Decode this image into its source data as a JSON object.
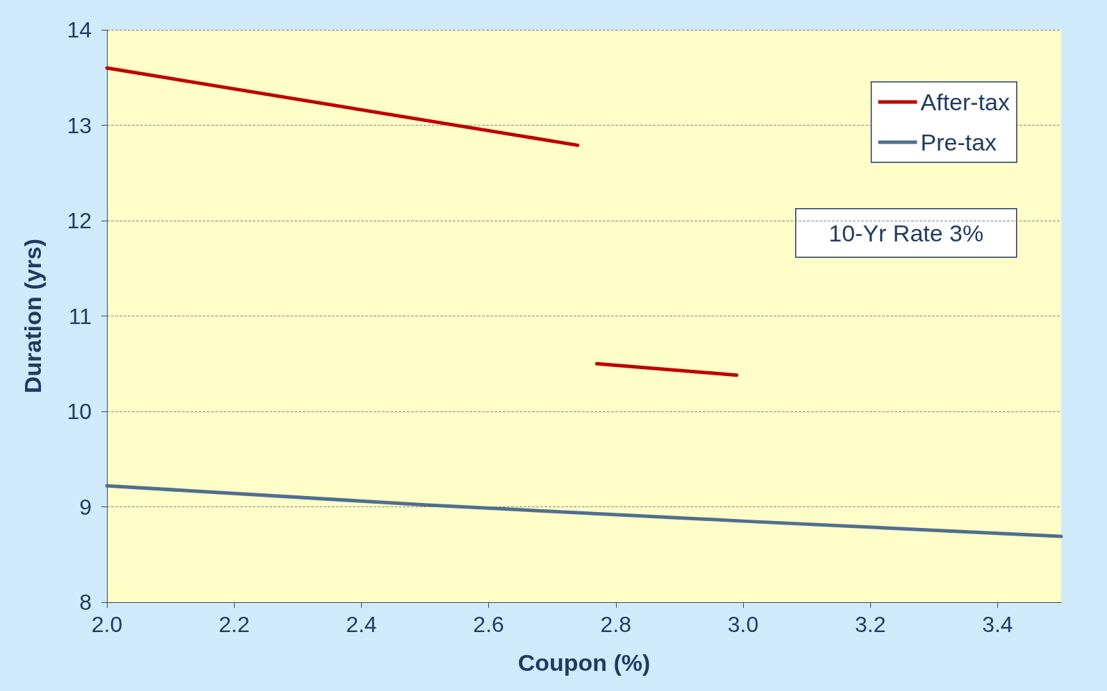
{
  "chart_data": {
    "type": "line",
    "xlabel": "Coupon (%)",
    "ylabel": "Duration (yrs)",
    "xlim": [
      2.0,
      3.5
    ],
    "xticks": [
      {
        "value": 2.0,
        "label": "2.0"
      },
      {
        "value": 2.2,
        "label": "2.2"
      },
      {
        "value": 2.4,
        "label": "2.4"
      },
      {
        "value": 2.6,
        "label": "2.6"
      },
      {
        "value": 2.8,
        "label": "2.8"
      },
      {
        "value": 3.0,
        "label": "3.0"
      },
      {
        "value": 3.2,
        "label": "3.2"
      },
      {
        "value": 3.4,
        "label": "3.4"
      }
    ],
    "ylim": [
      8,
      14
    ],
    "yticks": [
      8,
      9,
      10,
      11,
      12,
      13,
      14
    ],
    "series": [
      {
        "name": "After-tax",
        "color": "#c00000",
        "x": [
          2.0,
          2.74,
          2.755,
          2.77,
          2.99
        ],
        "values": [
          13.6,
          12.79,
          null,
          10.5,
          10.38
        ]
      },
      {
        "name": "Pre-tax",
        "color": "#4f6f8f",
        "x": [
          2.0,
          2.5,
          3.0,
          3.5
        ],
        "values": [
          9.22,
          9.02,
          8.85,
          8.69
        ]
      }
    ],
    "annotations": [
      "10-Yr Rate 3%"
    ],
    "grid": "y",
    "legend": "top right",
    "marker": "none"
  }
}
